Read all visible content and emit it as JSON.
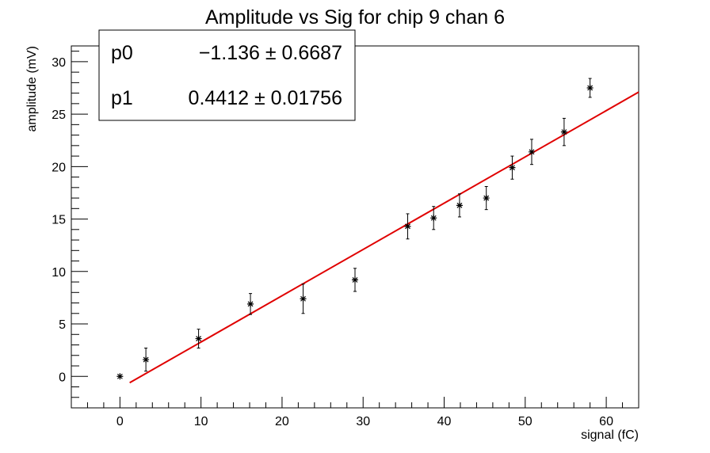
{
  "chart_data": {
    "type": "scatter",
    "title": "Amplitude vs Sig for chip 9 chan 6",
    "xlabel": "signal (fC)",
    "ylabel": "amplitude (mV)",
    "xlim": [
      -6,
      64
    ],
    "ylim": [
      -3,
      31.5
    ],
    "x_ticks": [
      0,
      10,
      20,
      30,
      40,
      50,
      60
    ],
    "y_ticks": [
      0,
      5,
      10,
      15,
      20,
      25,
      30
    ],
    "grid": false,
    "series": [
      {
        "marker": "star",
        "color": "#000000",
        "points": [
          {
            "x": 0.0,
            "y": 0.0,
            "err": 0.0
          },
          {
            "x": 3.2,
            "y": 1.6,
            "err": 1.1
          },
          {
            "x": 9.7,
            "y": 3.6,
            "err": 0.9
          },
          {
            "x": 16.1,
            "y": 6.9,
            "err": 1.0
          },
          {
            "x": 22.6,
            "y": 7.4,
            "err": 1.4
          },
          {
            "x": 29.0,
            "y": 9.2,
            "err": 1.1
          },
          {
            "x": 35.5,
            "y": 14.3,
            "err": 1.2
          },
          {
            "x": 38.7,
            "y": 15.1,
            "err": 1.1
          },
          {
            "x": 41.9,
            "y": 16.3,
            "err": 1.1
          },
          {
            "x": 45.2,
            "y": 17.0,
            "err": 1.1
          },
          {
            "x": 48.4,
            "y": 19.9,
            "err": 1.1
          },
          {
            "x": 50.8,
            "y": 21.4,
            "err": 1.2
          },
          {
            "x": 54.8,
            "y": 23.3,
            "err": 1.3
          },
          {
            "x": 58.0,
            "y": 27.5,
            "err": 0.9
          }
        ]
      }
    ],
    "fit": {
      "color": "#e00000",
      "p0": -1.136,
      "p1": 0.4412,
      "x_range": [
        1.2,
        64
      ]
    },
    "stats_box": {
      "position": "top-left",
      "rows": [
        {
          "name": "p0",
          "value": "−1.136 ± 0.6687"
        },
        {
          "name": "p1",
          "value": "0.4412 ± 0.01756"
        }
      ]
    }
  }
}
